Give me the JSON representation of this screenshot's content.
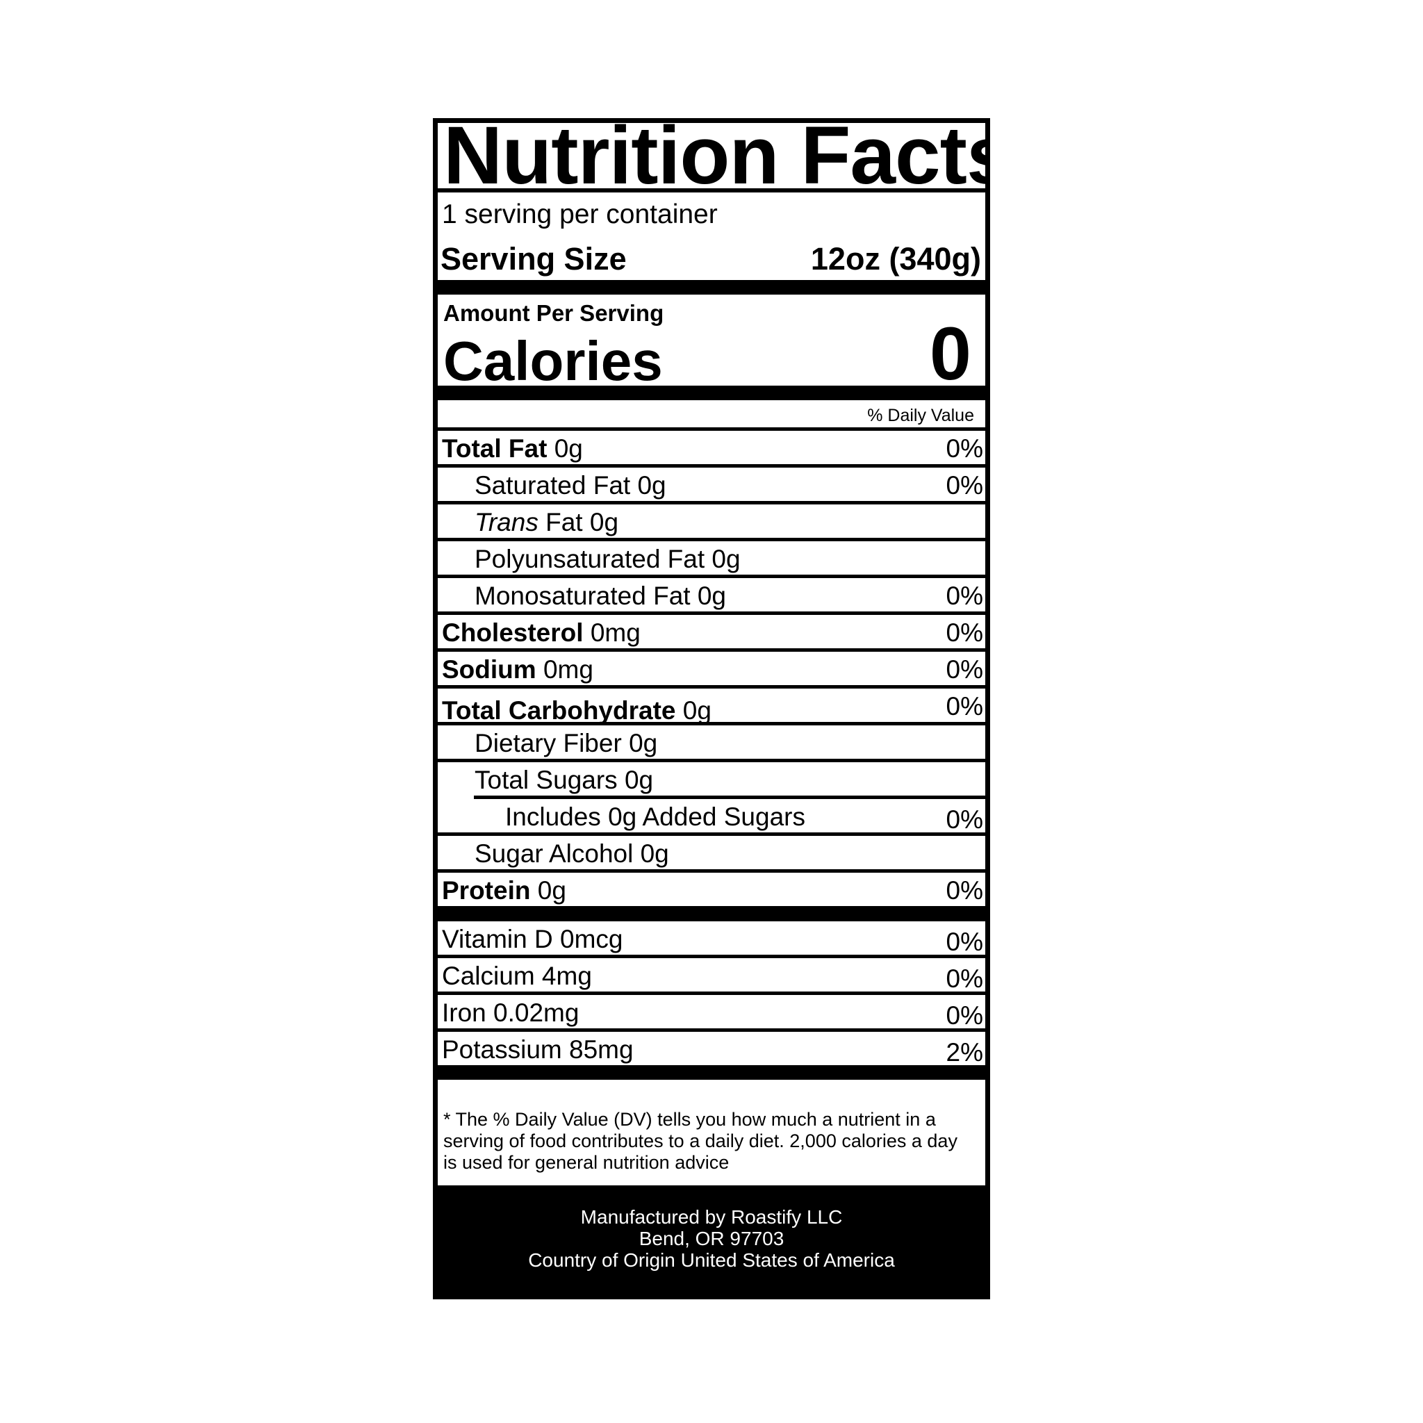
{
  "title": "Nutrition Facts",
  "servings_per_container": "1 serving per container",
  "serving_size": {
    "label": "Serving Size",
    "value": "12oz (340g)"
  },
  "amount_per_serving": "Amount Per Serving",
  "calories": {
    "label": "Calories",
    "value": "0"
  },
  "daily_value_header": "% Daily Value",
  "nutrients": [
    {
      "name": "Total Fat",
      "amount": "0g",
      "dv": "0%"
    },
    {
      "name": "Saturated Fat",
      "amount": "0g",
      "dv": "0%"
    },
    {
      "name_italic": "Trans",
      "name": "Fat",
      "amount": "0g",
      "dv": ""
    },
    {
      "name": "Polyunsaturated Fat",
      "amount": "0g",
      "dv": ""
    },
    {
      "name": "Monosaturated Fat",
      "amount": "0g",
      "dv": "0%"
    },
    {
      "name": "Cholesterol",
      "amount": "0mg",
      "dv": "0%"
    },
    {
      "name": "Sodium",
      "amount": "0mg",
      "dv": "0%"
    },
    {
      "name": "Total Carbohydrate",
      "amount": "0g",
      "dv": "0%"
    },
    {
      "name": "Dietary Fiber",
      "amount": "0g",
      "dv": ""
    },
    {
      "name": "Total Sugars",
      "amount": "0g",
      "dv": ""
    },
    {
      "name": "Includes 0g Added Sugars",
      "amount": "",
      "dv": "0%"
    },
    {
      "name": "Sugar Alcohol",
      "amount": "0g",
      "dv": ""
    },
    {
      "name": "Protein",
      "amount": "0g",
      "dv": "0%"
    }
  ],
  "vitamins": [
    {
      "name": "Vitamin D",
      "amount": "0mcg",
      "dv": "0%"
    },
    {
      "name": "Calcium",
      "amount": "4mg",
      "dv": "0%"
    },
    {
      "name": "Iron",
      "amount": "0.02mg",
      "dv": "0%"
    },
    {
      "name": "Potassium",
      "amount": "85mg",
      "dv": "2%"
    }
  ],
  "footnote": "* The % Daily Value (DV) tells you how much a nutrient in a serving of food contributes to a daily diet. 2,000 calories a day is used for general nutrition advice",
  "manufacturer": {
    "line1": "Manufactured by Roastify LLC",
    "line2": "Bend, OR 97703",
    "line3": "Country of Origin United States of America"
  }
}
